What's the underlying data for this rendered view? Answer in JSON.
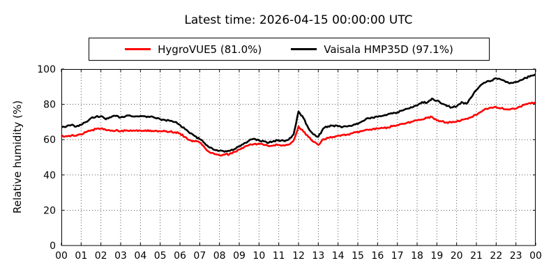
{
  "chart_data": {
    "type": "line",
    "title": "Latest time: 2026-04-15 00:00:00 UTC",
    "ylabel": "Relative humidity (%)",
    "xlabel": "",
    "xlim": [
      0,
      24
    ],
    "ylim": [
      0,
      100
    ],
    "grid": true,
    "grid_style": "dotted",
    "legend_position": "top-center",
    "yticks": [
      0,
      20,
      40,
      60,
      80,
      100
    ],
    "xtick_positions": [
      0,
      1,
      2,
      3,
      4,
      5,
      6,
      7,
      8,
      9,
      10,
      11,
      12,
      13,
      14,
      15,
      16,
      17,
      18,
      19,
      20,
      21,
      22,
      23,
      24
    ],
    "xtick_labels": [
      "00",
      "01",
      "02",
      "03",
      "04",
      "05",
      "06",
      "07",
      "08",
      "09",
      "10",
      "11",
      "12",
      "13",
      "14",
      "15",
      "16",
      "17",
      "18",
      "19",
      "20",
      "21",
      "22",
      "23",
      "00"
    ],
    "x_hours": [
      0,
      0.25,
      0.5,
      0.75,
      1,
      1.25,
      1.5,
      1.75,
      2,
      2.25,
      2.5,
      2.75,
      3,
      3.25,
      3.5,
      3.75,
      4,
      4.25,
      4.5,
      4.75,
      5,
      5.25,
      5.5,
      5.75,
      6,
      6.25,
      6.5,
      6.75,
      7,
      7.25,
      7.5,
      7.75,
      8,
      8.25,
      8.5,
      8.75,
      9,
      9.25,
      9.5,
      9.75,
      10,
      10.25,
      10.5,
      10.75,
      11,
      11.25,
      11.5,
      11.75,
      12,
      12.25,
      12.5,
      12.75,
      13,
      13.25,
      13.5,
      13.75,
      14,
      14.25,
      14.5,
      14.75,
      15,
      15.25,
      15.5,
      15.75,
      16,
      16.25,
      16.5,
      16.75,
      17,
      17.25,
      17.5,
      17.75,
      18,
      18.25,
      18.5,
      18.75,
      19,
      19.25,
      19.5,
      19.75,
      20,
      20.25,
      20.5,
      20.75,
      21,
      21.25,
      21.5,
      21.75,
      22,
      22.25,
      22.5,
      22.75,
      23,
      23.25,
      23.5,
      23.75,
      24
    ],
    "series": [
      {
        "name": "HygroVUE5 (81.0%)",
        "color": "#ff0000",
        "latest_value": 81.0,
        "values": [
          61.8,
          62.0,
          62.3,
          62.2,
          63.0,
          64.2,
          65.2,
          66.0,
          66.3,
          65.4,
          65.0,
          65.2,
          64.8,
          65.1,
          65.3,
          65.0,
          65.1,
          65.3,
          65.2,
          65.0,
          64.8,
          64.7,
          64.5,
          64.2,
          63.5,
          61.5,
          59.7,
          59.0,
          58.3,
          55.5,
          52.8,
          51.8,
          51.2,
          51.5,
          51.7,
          53.0,
          54.4,
          55.8,
          57.0,
          57.5,
          57.7,
          57.0,
          56.3,
          56.8,
          57.0,
          56.8,
          57.2,
          59.5,
          67.5,
          64.5,
          61.5,
          58.8,
          57.0,
          60.3,
          61.0,
          61.6,
          62.3,
          62.7,
          63.0,
          63.7,
          64.3,
          65.0,
          65.6,
          66.0,
          66.3,
          66.6,
          66.9,
          67.6,
          68.3,
          69.0,
          69.6,
          70.2,
          70.9,
          71.4,
          72.3,
          72.9,
          70.9,
          70.3,
          69.8,
          69.7,
          70.2,
          71.3,
          71.9,
          72.8,
          74.0,
          75.8,
          77.5,
          78.2,
          78.4,
          77.8,
          77.2,
          77.4,
          77.6,
          78.6,
          80.2,
          80.5,
          81.0
        ]
      },
      {
        "name": "Vaisala HMP35D (97.1%)",
        "color": "#000000",
        "latest_value": 97.1,
        "values": [
          66.9,
          67.4,
          68.3,
          67.4,
          68.3,
          70.0,
          72.2,
          73.0,
          73.3,
          71.5,
          72.6,
          73.4,
          72.6,
          73.3,
          73.5,
          73.2,
          73.4,
          73.2,
          73.0,
          72.3,
          71.6,
          71.1,
          70.6,
          70.0,
          68.3,
          66.0,
          63.6,
          62.0,
          60.3,
          58.0,
          55.5,
          54.2,
          53.7,
          53.1,
          53.6,
          54.6,
          56.3,
          58.0,
          59.5,
          60.5,
          59.6,
          59.0,
          58.3,
          59.2,
          59.6,
          59.3,
          60.0,
          63.0,
          76.0,
          72.2,
          66.5,
          63.0,
          61.6,
          66.3,
          67.6,
          68.0,
          67.6,
          67.3,
          67.6,
          68.2,
          68.9,
          70.5,
          72.2,
          72.5,
          72.9,
          73.5,
          74.2,
          74.8,
          75.5,
          76.5,
          77.5,
          78.2,
          79.3,
          81.3,
          80.9,
          83.3,
          82.1,
          80.4,
          79.0,
          78.3,
          78.8,
          81.3,
          80.3,
          84.1,
          88.1,
          91.2,
          92.7,
          93.4,
          94.8,
          94.0,
          92.6,
          92.2,
          92.7,
          93.8,
          95.0,
          96.2,
          97.1
        ]
      }
    ]
  }
}
